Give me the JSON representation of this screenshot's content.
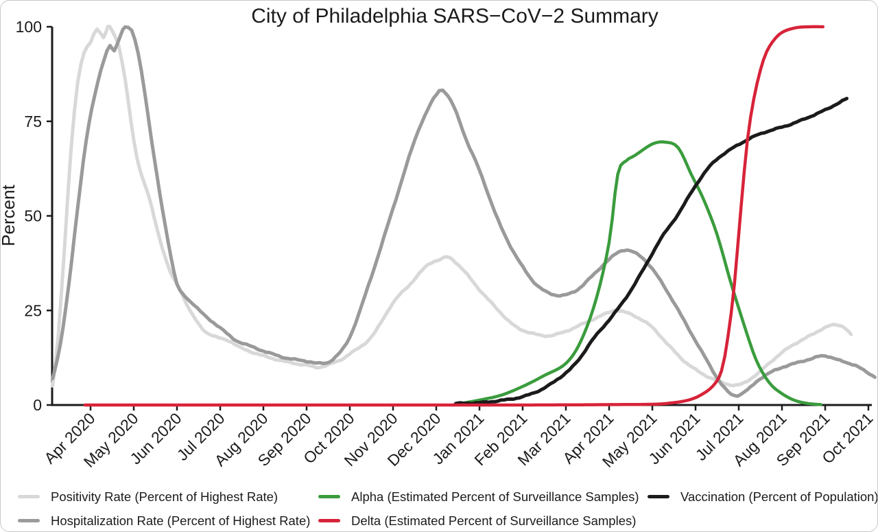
{
  "chart_data": {
    "type": "line",
    "title": "City of Philadelphia SARS−CoV−2 Summary",
    "ylabel": "Percent",
    "ylim": [
      0,
      100
    ],
    "yticks": [
      0,
      25,
      50,
      75,
      100
    ],
    "x_unit": "months since Apr 2020",
    "x_ticklabels": [
      "Apr 2020",
      "May 2020",
      "Jun 2020",
      "Jul 2020",
      "Aug 2020",
      "Sep 2020",
      "Oct 2020",
      "Nov 2020",
      "Dec 2020",
      "Jan 2021",
      "Feb 2021",
      "Mar 2021",
      "Apr 2021",
      "May 2021",
      "Jun 2021",
      "Jul 2021",
      "Aug 2021",
      "Sep 2021",
      "Oct 2021"
    ],
    "axis_color": "#1b1b1b",
    "grid": false,
    "legend_position": "bottom",
    "draw_order": [
      0,
      1,
      2,
      4,
      3
    ],
    "series": [
      {
        "name": "Positivity Rate (Percent of Highest Rate)",
        "color": "#d8d8d8",
        "width": 5,
        "jitter": 1.1,
        "points": [
          [
            -0.88,
            5
          ],
          [
            -0.75,
            18
          ],
          [
            -0.6,
            42
          ],
          [
            -0.45,
            68
          ],
          [
            -0.3,
            85
          ],
          [
            -0.15,
            93
          ],
          [
            0,
            96
          ],
          [
            0.15,
            99.5
          ],
          [
            0.3,
            97
          ],
          [
            0.4,
            100
          ],
          [
            0.5,
            99
          ],
          [
            0.65,
            95
          ],
          [
            0.8,
            86
          ],
          [
            1,
            70
          ],
          [
            1.15,
            62
          ],
          [
            1.35,
            55
          ],
          [
            1.6,
            44
          ],
          [
            1.85,
            35
          ],
          [
            2.05,
            31
          ],
          [
            2.3,
            25
          ],
          [
            2.6,
            20
          ],
          [
            2.9,
            18
          ],
          [
            3.2,
            17
          ],
          [
            3.5,
            15
          ],
          [
            4,
            13
          ],
          [
            4.5,
            11.5
          ],
          [
            5,
            10.5
          ],
          [
            5.3,
            10
          ],
          [
            5.7,
            11.5
          ],
          [
            6,
            13.5
          ],
          [
            6.5,
            18
          ],
          [
            7,
            27
          ],
          [
            7.4,
            32
          ],
          [
            7.8,
            37
          ],
          [
            8.1,
            38.5
          ],
          [
            8.3,
            39
          ],
          [
            8.6,
            36
          ],
          [
            9,
            30.5
          ],
          [
            9.4,
            25.5
          ],
          [
            9.8,
            21
          ],
          [
            10.2,
            19
          ],
          [
            10.6,
            18.3
          ],
          [
            11,
            19.5
          ],
          [
            11.5,
            22
          ],
          [
            12,
            24.5
          ],
          [
            12.2,
            25
          ],
          [
            12.6,
            23.5
          ],
          [
            13,
            20.5
          ],
          [
            13.4,
            15.5
          ],
          [
            13.8,
            11
          ],
          [
            14.2,
            8
          ],
          [
            14.6,
            6
          ],
          [
            15,
            5.3
          ],
          [
            15.4,
            8
          ],
          [
            15.8,
            12
          ],
          [
            16.2,
            15.5
          ],
          [
            16.6,
            18
          ],
          [
            17,
            20.5
          ],
          [
            17.25,
            21.2
          ],
          [
            17.45,
            20.5
          ],
          [
            17.6,
            18.5
          ]
        ]
      },
      {
        "name": "Hospitalization Rate (Percent of Highest Rate)",
        "color": "#9a9a9a",
        "width": 5,
        "jitter": 1.1,
        "points": [
          [
            -0.88,
            7
          ],
          [
            -0.7,
            16
          ],
          [
            -0.5,
            32
          ],
          [
            -0.3,
            52
          ],
          [
            -0.1,
            70
          ],
          [
            0.1,
            82
          ],
          [
            0.3,
            91
          ],
          [
            0.45,
            95
          ],
          [
            0.55,
            93.5
          ],
          [
            0.7,
            98
          ],
          [
            0.8,
            100
          ],
          [
            0.95,
            99
          ],
          [
            1.1,
            93
          ],
          [
            1.25,
            83
          ],
          [
            1.4,
            71
          ],
          [
            1.6,
            56
          ],
          [
            1.8,
            43
          ],
          [
            2,
            32
          ],
          [
            2.2,
            28.5
          ],
          [
            2.4,
            26.5
          ],
          [
            2.7,
            23
          ],
          [
            3,
            20.5
          ],
          [
            3.3,
            17.5
          ],
          [
            3.6,
            16
          ],
          [
            4,
            14.3
          ],
          [
            4.5,
            12.5
          ],
          [
            5,
            11.6
          ],
          [
            5.3,
            11
          ],
          [
            5.6,
            12
          ],
          [
            6,
            18
          ],
          [
            6.5,
            34
          ],
          [
            7,
            52
          ],
          [
            7.5,
            70
          ],
          [
            7.8,
            78
          ],
          [
            8,
            82
          ],
          [
            8.15,
            83.3
          ],
          [
            8.4,
            79
          ],
          [
            8.7,
            70
          ],
          [
            9,
            62
          ],
          [
            9.5,
            47
          ],
          [
            10,
            36.5
          ],
          [
            10.4,
            31
          ],
          [
            10.8,
            29
          ],
          [
            11.2,
            30
          ],
          [
            11.6,
            34
          ],
          [
            12,
            38.5
          ],
          [
            12.35,
            41
          ],
          [
            12.7,
            39.5
          ],
          [
            13,
            36
          ],
          [
            13.4,
            29
          ],
          [
            13.8,
            21
          ],
          [
            14.2,
            13
          ],
          [
            14.6,
            5.5
          ],
          [
            14.9,
            2.5
          ],
          [
            15.2,
            4
          ],
          [
            15.5,
            7
          ],
          [
            15.9,
            9.5
          ],
          [
            16.3,
            11
          ],
          [
            16.7,
            12.3
          ],
          [
            17,
            13
          ],
          [
            17.4,
            11.5
          ],
          [
            17.7,
            10.5
          ],
          [
            17.95,
            8.7
          ],
          [
            18.15,
            7.5
          ]
        ]
      },
      {
        "name": "Alpha (Estimated Percent of Surveillance Samples)",
        "color": "#3a9c3d",
        "width": 4.5,
        "jitter": 0,
        "points": [
          [
            8.45,
            0.2
          ],
          [
            9,
            1.3
          ],
          [
            9.5,
            2.6
          ],
          [
            10,
            4.9
          ],
          [
            10.5,
            7.8
          ],
          [
            11,
            11
          ],
          [
            11.35,
            17
          ],
          [
            11.7,
            28
          ],
          [
            12,
            43
          ],
          [
            12.2,
            61
          ],
          [
            12.4,
            64.6
          ],
          [
            12.6,
            66
          ],
          [
            13,
            69
          ],
          [
            13.3,
            69.5
          ],
          [
            13.6,
            68
          ],
          [
            13.9,
            61
          ],
          [
            14.2,
            54
          ],
          [
            14.5,
            45
          ],
          [
            14.8,
            33
          ],
          [
            15.1,
            22
          ],
          [
            15.4,
            12
          ],
          [
            15.7,
            6
          ],
          [
            16,
            3
          ],
          [
            16.3,
            1.2
          ],
          [
            16.6,
            0.4
          ],
          [
            16.9,
            0.1
          ]
        ]
      },
      {
        "name": "Delta (Estimated Percent of Surveillance Samples)",
        "color": "#d72339",
        "width": 4.5,
        "jitter": 0,
        "points": [
          [
            -0.13,
            0
          ],
          [
            2,
            0
          ],
          [
            5,
            0
          ],
          [
            8,
            0
          ],
          [
            10,
            0
          ],
          [
            12,
            0.1
          ],
          [
            13,
            0.2
          ],
          [
            13.4,
            0.5
          ],
          [
            13.8,
            1.2
          ],
          [
            14.1,
            2.5
          ],
          [
            14.4,
            5
          ],
          [
            14.6,
            9
          ],
          [
            14.75,
            18
          ],
          [
            14.9,
            32
          ],
          [
            15.05,
            52
          ],
          [
            15.2,
            70
          ],
          [
            15.35,
            81
          ],
          [
            15.5,
            88.5
          ],
          [
            15.65,
            93.5
          ],
          [
            15.85,
            97
          ],
          [
            16.05,
            98.8
          ],
          [
            16.35,
            99.8
          ],
          [
            16.65,
            100
          ],
          [
            16.95,
            100
          ]
        ]
      },
      {
        "name": "Vaccination (Percent of Population)",
        "color": "#1b1b1b",
        "width": 5,
        "jitter": 0.9,
        "points": [
          [
            8.45,
            0.4
          ],
          [
            9,
            0.6
          ],
          [
            9.5,
            1.2
          ],
          [
            10,
            2.2
          ],
          [
            10.5,
            4.5
          ],
          [
            11,
            8.5
          ],
          [
            11.3,
            12
          ],
          [
            11.6,
            17
          ],
          [
            12,
            22.5
          ],
          [
            12.4,
            28.5
          ],
          [
            12.8,
            36
          ],
          [
            13.2,
            44
          ],
          [
            13.6,
            50.5
          ],
          [
            14,
            58
          ],
          [
            14.4,
            64
          ],
          [
            14.8,
            67.5
          ],
          [
            15.1,
            69.5
          ],
          [
            15.45,
            71.5
          ],
          [
            15.8,
            72.8
          ],
          [
            16.2,
            74.2
          ],
          [
            16.6,
            76
          ],
          [
            17,
            78
          ],
          [
            17.25,
            79.5
          ],
          [
            17.5,
            81
          ]
        ]
      }
    ]
  }
}
